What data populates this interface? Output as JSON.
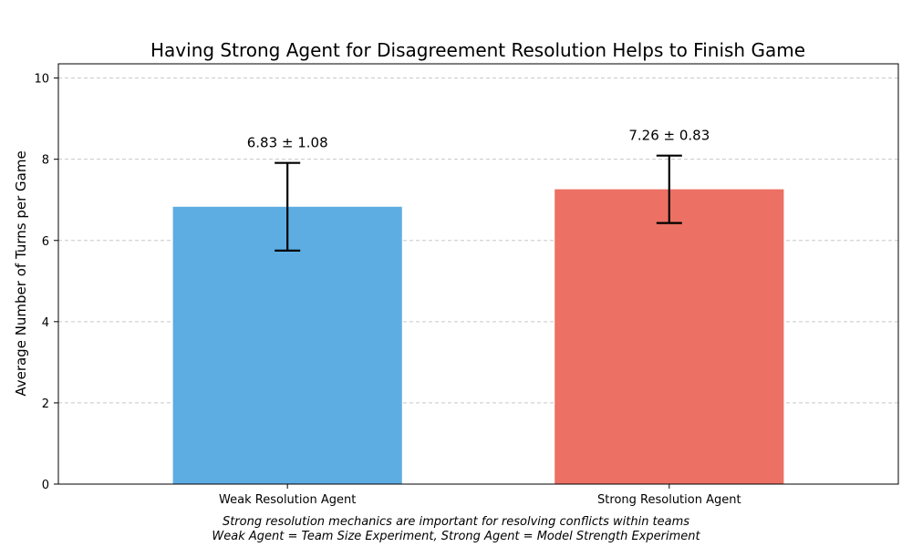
{
  "chart_data": {
    "type": "bar",
    "title": "Having Strong Agent for Disagreement Resolution Helps to Finish Game",
    "xlabel": "",
    "ylabel": "Average Number of Turns per Game",
    "categories": [
      "Weak Resolution Agent",
      "Strong Resolution Agent"
    ],
    "values": [
      6.83,
      7.26
    ],
    "errors": [
      1.08,
      0.83
    ],
    "value_labels": [
      "6.83 ± 1.08",
      "7.26 ± 0.83"
    ],
    "colors": [
      "#5DADE2",
      "#EC7063"
    ],
    "ylim": [
      0,
      10.35
    ],
    "yticks": [
      0,
      2,
      4,
      6,
      8,
      10
    ],
    "grid": true
  },
  "captions": [
    "Strong resolution mechanics are important for resolving conflicts within teams",
    "Weak Agent = Team Size Experiment, Strong Agent = Model Strength Experiment"
  ]
}
